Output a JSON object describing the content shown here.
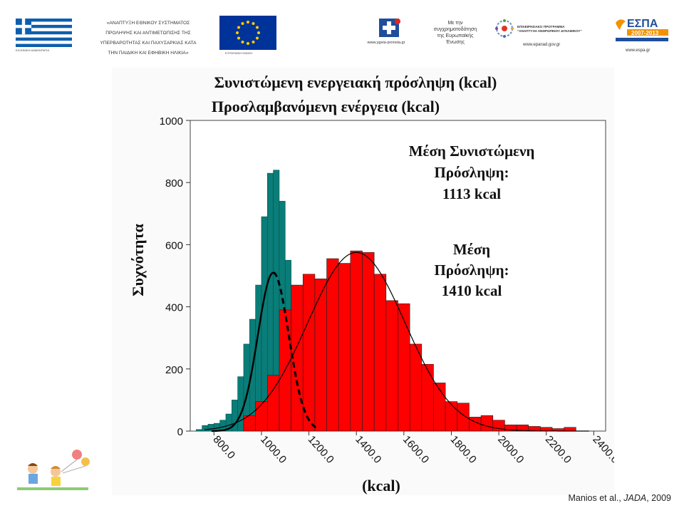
{
  "header": {
    "flag_caption": "ΕΛΛΗΝΙΚΗ ΔΗΜΟΚΡΑΤΙΑ",
    "project_text": [
      "«ΑΝΑΠΤΥΞΗ ΕΘΝΙΚΟΥ ΣΥΣΤΗΜΑΤΟΣ",
      "ΠΡΟΛΗΨΗΣ ΚΑΙ ΑΝΤΙΜΕΤΩΠΙΣΗΣ ΤΗΣ",
      "ΥΠΕΡΒΑΡΟΤΗΤΑΣ ΚΑΙ ΠΑΧΥΣΑΡΚΙΑΣ ΚΑΤΑ",
      "ΤΗΝ ΠΑΙΔΙΚΗ ΚΑΙ ΕΦΗΒΙΚΗ ΗΛΙΚΙΑ»"
    ],
    "eu_caption": "ΕΥΡΩΠΑΪΚΗ ΕΝΩΣΗ",
    "ministry_url": "www.ygeia-pronoia.gr",
    "cofund_text": [
      "Με την",
      "συγχρηματοδότηση",
      "της Ευρωπαϊκής",
      "Ένωσης"
    ],
    "program_name": [
      "ΕΠΙΧΕΙΡΗΣΙΑΚΟ ΠΡΟΓΡΑΜΜΑ",
      "\"ΑΝΑΠΤΥΞΗ ΑΝΘΡΩΠΙΝΟΥ ΔΥΝΑΜΙΚΟΥ\""
    ],
    "program_url": "www.epanad.gov.gr",
    "espa_title": "ΕΣΠΑ",
    "espa_years": "2007-2013",
    "espa_url": "www.espa.gr",
    "colors": {
      "greek_blue": "#0d5eaf",
      "eu_blue": "#003399",
      "eu_gold": "#ffcc00",
      "espa_orange": "#f39200"
    }
  },
  "chart_data": {
    "type": "bar",
    "title": "Συνιστώμενη ενεργειακή πρόσληψη (kcal)",
    "subtitle": "Προσλαμβανόμενη ενέργεια (kcal)",
    "xlabel": "(kcal)",
    "ylabel": "Συχνότητα",
    "xlim": [
      700,
      2450
    ],
    "ylim": [
      0,
      1000
    ],
    "x_ticks": [
      "800.0",
      "1000.0",
      "1200.0",
      "1400.0",
      "1600.0",
      "1800.0",
      "2000.0",
      "2200.0",
      "2400.0"
    ],
    "y_ticks": [
      0,
      200,
      400,
      600,
      800,
      1000
    ],
    "grid": false,
    "series": [
      {
        "color": "#0a7d78",
        "bin_start": 700,
        "bin_width": 25,
        "values": [
          0,
          5,
          18,
          22,
          25,
          35,
          55,
          100,
          175,
          280,
          360,
          470,
          690,
          830,
          840,
          740,
          550,
          310,
          150,
          50,
          10,
          0,
          0
        ]
      },
      {
        "color": "#ff0000",
        "bin_start": 925,
        "bin_width": 50,
        "values": [
          50,
          95,
          180,
          390,
          470,
          505,
          490,
          555,
          540,
          580,
          575,
          505,
          420,
          410,
          280,
          215,
          155,
          95,
          90,
          45,
          50,
          35,
          20,
          20,
          15,
          12,
          8,
          12
        ]
      }
    ],
    "fit_curves": [
      {
        "mean": 1050,
        "sd": 65,
        "peak": 510,
        "style": "solid",
        "color": "#000000",
        "x_range": [
          790,
          1050
        ]
      },
      {
        "mean": 1050,
        "sd": 65,
        "peak": 510,
        "style": "dashed",
        "color": "#000000",
        "x_range": [
          1050,
          1240
        ]
      },
      {
        "mean": 1400,
        "sd": 205,
        "peak": 575,
        "style": "solid",
        "color": "#000000",
        "x_range": [
          760,
          2380
        ]
      }
    ],
    "annotations": [
      {
        "lines": [
          "Μέση Συνιστώμενη",
          "Πρόσληψη:",
          "1113 kcal"
        ]
      },
      {
        "lines": [
          "Μέση",
          "Πρόσληψη:",
          "1410 kcal"
        ]
      }
    ]
  },
  "citation": {
    "authors": "Manios et al., ",
    "journal": "JADA",
    "year": ", 2009"
  }
}
